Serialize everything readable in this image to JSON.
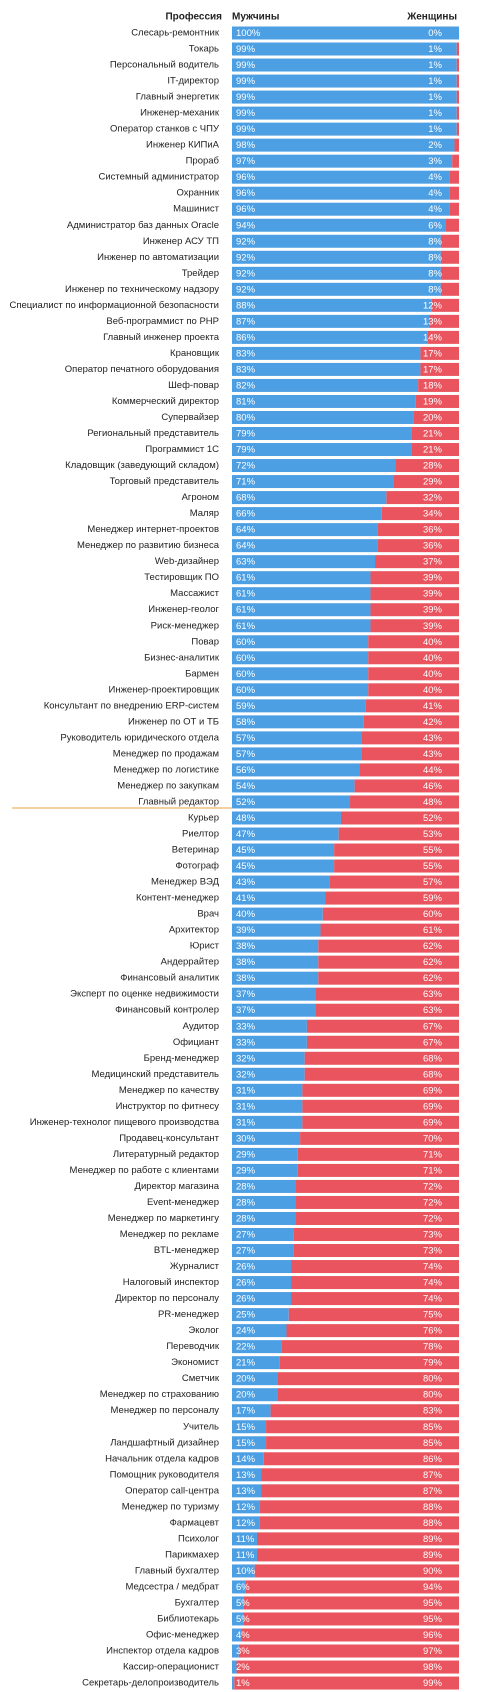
{
  "chart_data": {
    "type": "bar",
    "orientation": "horizontal",
    "stacked": true,
    "category_header": "Профессия",
    "categories": [
      "Слесарь-ремонтник",
      "Токарь",
      "Персональный водитель",
      "IT-директор",
      "Главный энергетик",
      "Инженер-механик",
      "Оператор станков с ЧПУ",
      "Инженер КИПиА",
      "Прораб",
      "Системный администратор",
      "Охранник",
      "Машинист",
      "Администратор баз данных Oracle",
      "Инженер АСУ ТП",
      "Инженер по автоматизации",
      "Трейдер",
      "Инженер по техническому надзору",
      "Специалист по информационной безопасности",
      "Веб-программист по PHP",
      "Главный инженер проекта",
      "Крановщик",
      "Оператор печатного оборудования",
      "Шеф-повар",
      "Коммерческий директор",
      "Супервайзер",
      "Региональный представитель",
      "Программист 1С",
      "Кладовщик (заведующий складом)",
      "Торговый представитель",
      "Агроном",
      "Маляр",
      "Менеджер интернет-проектов",
      "Менеджер по развитию бизнеса",
      "Web-дизайнер",
      "Тестировщик ПО",
      "Массажист",
      "Инженер-геолог",
      "Риск-менеджер",
      "Повар",
      "Бизнес-аналитик",
      "Бармен",
      "Инженер-проектировщик",
      "Консультант по внедрению ERP-систем",
      "Инженер по ОТ и ТБ",
      "Руководитель юридического отдела",
      "Менеджер по продажам",
      "Менеджер по логистике",
      "Менеджер по закупкам",
      "Главный редактор",
      "Курьер",
      "Риелтор",
      "Ветеринар",
      "Фотограф",
      "Менеджер ВЭД",
      "Контент-менеджер",
      "Врач",
      "Архитектор",
      "Юрист",
      "Андеррайтер",
      "Финансовый аналитик",
      "Эксперт по оценке недвижимости",
      "Финансовый контролер",
      "Аудитор",
      "Официант",
      "Бренд-менеджер",
      "Медицинский представитель",
      "Менеджер по качеству",
      "Инструктор по фитнесу",
      "Инженер-технолог пищевого производства",
      "Продавец-консультант",
      "Литературный редактор",
      "Менеджер по работе с клиентами",
      "Директор магазина",
      "Event-менеджер",
      "Менеджер по маркетингу",
      "Менеджер по рекламе",
      "BTL-менеджер",
      "Журналист",
      "Налоговый инспектор",
      "Директор по персоналу",
      "PR-менеджер",
      "Эколог",
      "Переводчик",
      "Экономист",
      "Сметчик",
      "Менеджер по страхованию",
      "Менеджер по персоналу",
      "Учитель",
      "Ландшафтный дизайнер",
      "Начальник отдела кадров",
      "Помощник руководителя",
      "Оператор call-центра",
      "Менеджер по туризму",
      "Фармацевт",
      "Психолог",
      "Парикмахер",
      "Главный бухгалтер",
      "Медсестра / медбрат",
      "Бухгалтер",
      "Библиотекарь",
      "Офис-менеджер",
      "Инспектор отдела кадров",
      "Кассир-операционист",
      "Секретарь-делопроизводитель"
    ],
    "series": [
      {
        "name": "Мужчины",
        "color": "#4d9fe3",
        "values": [
          100,
          99,
          99,
          99,
          99,
          99,
          99,
          98,
          97,
          96,
          96,
          96,
          94,
          92,
          92,
          92,
          92,
          88,
          87,
          86,
          83,
          83,
          82,
          81,
          80,
          79,
          79,
          72,
          71,
          68,
          66,
          64,
          64,
          63,
          61,
          61,
          61,
          61,
          60,
          60,
          60,
          60,
          59,
          58,
          57,
          57,
          56,
          54,
          52,
          48,
          47,
          45,
          45,
          43,
          41,
          40,
          39,
          38,
          38,
          38,
          37,
          37,
          33,
          33,
          32,
          32,
          31,
          31,
          31,
          30,
          29,
          29,
          28,
          28,
          28,
          27,
          27,
          26,
          26,
          26,
          25,
          24,
          22,
          21,
          20,
          20,
          17,
          15,
          15,
          14,
          13,
          13,
          12,
          12,
          11,
          11,
          10,
          6,
          5,
          5,
          4,
          3,
          2,
          1
        ],
        "value_labels": [
          "100%",
          "99%",
          "99%",
          "99%",
          "99%",
          "99%",
          "99%",
          "98%",
          "97%",
          "96%",
          "96%",
          "96%",
          "94%",
          "92%",
          "92%",
          "92%",
          "92%",
          "88%",
          "87%",
          "86%",
          "83%",
          "83%",
          "82%",
          "81%",
          "80%",
          "79%",
          "79%",
          "72%",
          "71%",
          "68%",
          "66%",
          "64%",
          "64%",
          "63%",
          "61%",
          "61%",
          "61%",
          "61%",
          "60%",
          "60%",
          "60%",
          "60%",
          "59%",
          "58%",
          "57%",
          "57%",
          "56%",
          "54%",
          "52%",
          "48%",
          "47%",
          "45%",
          "45%",
          "43%",
          "41%",
          "40%",
          "39%",
          "38%",
          "38%",
          "38%",
          "37%",
          "37%",
          "33%",
          "33%",
          "32%",
          "32%",
          "31%",
          "31%",
          "31%",
          "30%",
          "29%",
          "29%",
          "28%",
          "28%",
          "28%",
          "27%",
          "27%",
          "26%",
          "26%",
          "26%",
          "25%",
          "24%",
          "22%",
          "21%",
          "20%",
          "20%",
          "17%",
          "15%",
          "15%",
          "14%",
          "13%",
          "13%",
          "12%",
          "12%",
          "11%",
          "11%",
          "10%",
          "6%",
          "5%",
          "5%",
          "4%",
          "3%",
          "2%",
          "1%"
        ]
      },
      {
        "name": "Женщины",
        "color": "#e9545f",
        "values": [
          0,
          1,
          1,
          1,
          1,
          1,
          1,
          2,
          3,
          4,
          4,
          4,
          6,
          8,
          8,
          8,
          8,
          12,
          13,
          14,
          17,
          17,
          18,
          19,
          20,
          21,
          21,
          28,
          29,
          32,
          34,
          36,
          36,
          37,
          39,
          39,
          39,
          39,
          40,
          40,
          40,
          40,
          41,
          42,
          43,
          43,
          44,
          46,
          48,
          52,
          53,
          55,
          55,
          57,
          59,
          60,
          61,
          62,
          62,
          62,
          63,
          63,
          67,
          67,
          68,
          68,
          69,
          69,
          69,
          70,
          71,
          71,
          72,
          72,
          72,
          73,
          73,
          74,
          74,
          74,
          75,
          76,
          78,
          79,
          80,
          80,
          83,
          85,
          85,
          86,
          87,
          87,
          88,
          88,
          89,
          89,
          90,
          94,
          95,
          95,
          96,
          97,
          98,
          99
        ],
        "value_labels": [
          "0%",
          "1%",
          "1%",
          "1%",
          "1%",
          "1%",
          "1%",
          "2%",
          "3%",
          "4%",
          "4%",
          "4%",
          "6%",
          "8%",
          "8%",
          "8%",
          "8%",
          "12%",
          "13%",
          "14%",
          "17%",
          "17%",
          "18%",
          "19%",
          "20%",
          "21%",
          "21%",
          "28%",
          "29%",
          "32%",
          "34%",
          "36%",
          "36%",
          "37%",
          "39%",
          "39%",
          "39%",
          "39%",
          "40%",
          "40%",
          "40%",
          "40%",
          "41%",
          "42%",
          "43%",
          "43%",
          "44%",
          "46%",
          "48%",
          "52%",
          "53%",
          "55%",
          "55%",
          "57%",
          "59%",
          "60%",
          "61%",
          "62%",
          "62%",
          "62%",
          "63%",
          "63%",
          "67%",
          "67%",
          "68%",
          "68%",
          "69%",
          "69%",
          "69%",
          "70%",
          "71%",
          "71%",
          "72%",
          "72%",
          "72%",
          "73%",
          "73%",
          "74%",
          "74%",
          "74%",
          "75%",
          "76%",
          "78%",
          "79%",
          "80%",
          "80%",
          "83%",
          "85%",
          "85%",
          "86%",
          "87%",
          "87%",
          "88%",
          "88%",
          "89%",
          "89%",
          "90%",
          "94%",
          "95%",
          "95%",
          "96%",
          "97%",
          "98%",
          "99%"
        ]
      }
    ],
    "xlim": [
      0,
      100
    ]
  }
}
